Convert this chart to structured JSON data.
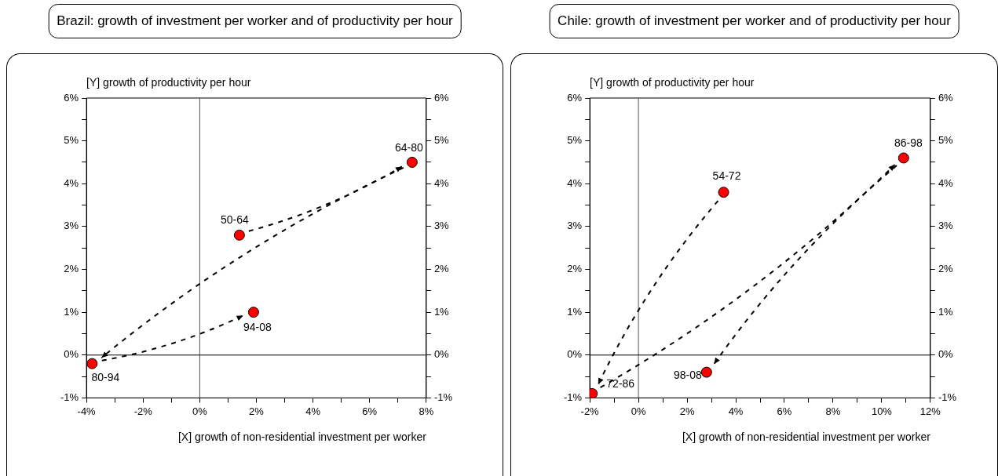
{
  "chart_data": [
    {
      "type": "scatter",
      "title": "Brazil: growth of investment per worker and of productivity per hour",
      "xlabel": "[X] growth of non-residential investment per worker",
      "ylabel": "[Y] growth of productivity per hour",
      "x": [
        1.4,
        7.5,
        -3.8,
        1.9
      ],
      "series": [
        {
          "color": "#ff0000",
          "values": [
            2.8,
            4.5,
            -0.2,
            1.0
          ]
        }
      ],
      "marker": "circle",
      "grid": false,
      "xlim": [
        -4,
        8
      ],
      "xticks": [
        {
          "value": -4,
          "label": "-4%"
        },
        {
          "value": -3,
          "label": null
        },
        {
          "value": -2,
          "label": "-2%"
        },
        {
          "value": -1,
          "label": null
        },
        {
          "value": 0,
          "label": "0%"
        },
        {
          "value": 1,
          "label": null
        },
        {
          "value": 2,
          "label": "2%"
        },
        {
          "value": 3,
          "label": null
        },
        {
          "value": 4,
          "label": "4%"
        },
        {
          "value": 5,
          "label": null
        },
        {
          "value": 6,
          "label": "6%"
        },
        {
          "value": 7,
          "label": null
        },
        {
          "value": 8,
          "label": "8%"
        }
      ],
      "ylim": [
        -1,
        6
      ],
      "yticks": [
        {
          "value": -1,
          "label": "-1%"
        },
        {
          "value": -0.5,
          "label": null
        },
        {
          "value": 0,
          "label": "0%"
        },
        {
          "value": 0.5,
          "label": null
        },
        {
          "value": 1,
          "label": "1%"
        },
        {
          "value": 1.5,
          "label": null
        },
        {
          "value": 2,
          "label": "2%"
        },
        {
          "value": 2.5,
          "label": null
        },
        {
          "value": 3,
          "label": "3%"
        },
        {
          "value": 3.5,
          "label": null
        },
        {
          "value": 4,
          "label": "4%"
        },
        {
          "value": 4.5,
          "label": null
        },
        {
          "value": 5,
          "label": "5%"
        },
        {
          "value": 5.5,
          "label": null
        },
        {
          "value": 6,
          "label": "6%"
        }
      ],
      "y2lim": [
        -1,
        6
      ],
      "y2ticks": [
        {
          "value": -1,
          "label": "-1%"
        },
        {
          "value": -0.5,
          "label": null
        },
        {
          "value": 0,
          "label": "0%"
        },
        {
          "value": 0.5,
          "label": null
        },
        {
          "value": 1,
          "label": "1%"
        },
        {
          "value": 1.5,
          "label": null
        },
        {
          "value": 2,
          "label": "2%"
        },
        {
          "value": 2.5,
          "label": null
        },
        {
          "value": 3,
          "label": "3%"
        },
        {
          "value": 3.5,
          "label": null
        },
        {
          "value": 4,
          "label": "4%"
        },
        {
          "value": 4.5,
          "label": null
        },
        {
          "value": 5,
          "label": "5%"
        },
        {
          "value": 5.5,
          "label": null
        },
        {
          "value": 6,
          "label": "6%"
        }
      ],
      "ref_lines": [
        {
          "axis": "x",
          "value": 0,
          "color": "#555555"
        },
        {
          "axis": "y",
          "value": 0,
          "color": "#000000"
        }
      ],
      "annotations": [
        {
          "text": "50-64",
          "x": 1.4,
          "y": 2.8
        },
        {
          "text": "64-80",
          "x": 7.5,
          "y": 4.5
        },
        {
          "text": "80-94",
          "x": -3.8,
          "y": -0.2
        },
        {
          "text": "94-08",
          "x": 1.9,
          "y": 1.0
        }
      ]
    },
    {
      "type": "scatter",
      "title": "Chile: growth of investment per worker and of productivity per hour",
      "xlabel": "[X] growth of non-residential investment per worker",
      "ylabel": "[Y] growth of productivity per hour",
      "x": [
        3.5,
        -1.9,
        10.9,
        2.8
      ],
      "series": [
        {
          "color": "#ff0000",
          "values": [
            3.8,
            -0.9,
            4.6,
            -0.4
          ]
        }
      ],
      "marker": "circle",
      "grid": false,
      "xlim": [
        -2,
        12
      ],
      "xticks": [
        {
          "value": -2,
          "label": "-2%"
        },
        {
          "value": -1,
          "label": null
        },
        {
          "value": 0,
          "label": "0%"
        },
        {
          "value": 1,
          "label": null
        },
        {
          "value": 2,
          "label": "2%"
        },
        {
          "value": 3,
          "label": null
        },
        {
          "value": 4,
          "label": "4%"
        },
        {
          "value": 5,
          "label": null
        },
        {
          "value": 6,
          "label": "6%"
        },
        {
          "value": 7,
          "label": null
        },
        {
          "value": 8,
          "label": "8%"
        },
        {
          "value": 9,
          "label": null
        },
        {
          "value": 10,
          "label": "10%"
        },
        {
          "value": 11,
          "label": null
        },
        {
          "value": 12,
          "label": "12%"
        }
      ],
      "ylim": [
        -1,
        6
      ],
      "yticks": [
        {
          "value": -1,
          "label": "-1%"
        },
        {
          "value": -0.5,
          "label": null
        },
        {
          "value": 0,
          "label": "0%"
        },
        {
          "value": 0.5,
          "label": null
        },
        {
          "value": 1,
          "label": "1%"
        },
        {
          "value": 1.5,
          "label": null
        },
        {
          "value": 2,
          "label": "2%"
        },
        {
          "value": 2.5,
          "label": null
        },
        {
          "value": 3,
          "label": "3%"
        },
        {
          "value": 3.5,
          "label": null
        },
        {
          "value": 4,
          "label": "4%"
        },
        {
          "value": 4.5,
          "label": null
        },
        {
          "value": 5,
          "label": "5%"
        },
        {
          "value": 5.5,
          "label": null
        },
        {
          "value": 6,
          "label": "6%"
        }
      ],
      "y2lim": [
        -1,
        6
      ],
      "y2ticks": [
        {
          "value": -1,
          "label": "-1%"
        },
        {
          "value": -0.5,
          "label": null
        },
        {
          "value": 0,
          "label": "0%"
        },
        {
          "value": 0.5,
          "label": null
        },
        {
          "value": 1,
          "label": "1%"
        },
        {
          "value": 1.5,
          "label": null
        },
        {
          "value": 2,
          "label": "2%"
        },
        {
          "value": 2.5,
          "label": null
        },
        {
          "value": 3,
          "label": "3%"
        },
        {
          "value": 3.5,
          "label": null
        },
        {
          "value": 4,
          "label": "4%"
        },
        {
          "value": 4.5,
          "label": null
        },
        {
          "value": 5,
          "label": "5%"
        },
        {
          "value": 5.5,
          "label": null
        },
        {
          "value": 6,
          "label": "6%"
        }
      ],
      "ref_lines": [
        {
          "axis": "x",
          "value": 0,
          "color": "#555555"
        },
        {
          "axis": "y",
          "value": 0,
          "color": "#000000"
        }
      ],
      "annotations": [
        {
          "text": "54-72",
          "x": 3.5,
          "y": 3.8
        },
        {
          "text": "72-86",
          "x": -1.9,
          "y": -0.9
        },
        {
          "text": "86-98",
          "x": 10.9,
          "y": 4.6
        },
        {
          "text": "98-08",
          "x": 2.8,
          "y": -0.4
        }
      ]
    }
  ]
}
